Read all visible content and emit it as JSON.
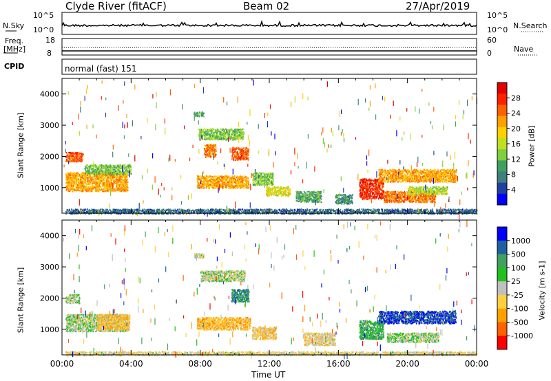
{
  "header": {
    "title": "Clyde River (fitACF)",
    "beam": "Beam 02",
    "date": "27/Apr/2019"
  },
  "top_panels": {
    "nsky_label": "N.Sky",
    "nsearch_label": "N.Search",
    "nsky_ticks": [
      "10^5",
      "10^0"
    ],
    "freq_label": "Freq.",
    "freq_unit": "[MHz]",
    "freq_ticks": [
      "18",
      "8"
    ],
    "nave_label": "Nave",
    "nave_ticks": [
      "60",
      "0"
    ],
    "cpid_label": "CPID",
    "cpid_text": "normal (fast) 151"
  },
  "chart_data": [
    {
      "type": "heatmap",
      "name": "power-panel",
      "ylabel": "Slant Range [km]",
      "yticks": [
        "4000",
        "3000",
        "2000",
        "1000"
      ],
      "ylim": [
        180,
        4500
      ],
      "xlim": [
        0,
        24
      ],
      "colorbar_label": "Power [dB]",
      "colorbar_ticks": [
        "28",
        "24",
        "20",
        "16",
        "12",
        "8",
        "4"
      ],
      "colorbar_range": [
        0,
        30
      ],
      "colorscale": [
        "#0000ff",
        "#2040a0",
        "#3f7f7f",
        "#3fa060",
        "#7fcf3f",
        "#bfdf20",
        "#ffd000",
        "#ffa000",
        "#ff6000",
        "#ff2000",
        "#e00000"
      ],
      "blobs": [
        {
          "t0": 0.2,
          "t1": 1.2,
          "r0": 1850,
          "r1": 2150,
          "v": 24
        },
        {
          "t0": 0.2,
          "t1": 3.8,
          "r0": 900,
          "r1": 1500,
          "v": 20
        },
        {
          "t0": 1.3,
          "t1": 4.0,
          "r0": 1450,
          "r1": 1750,
          "v": 12
        },
        {
          "t0": 7.6,
          "t1": 8.2,
          "r0": 3300,
          "r1": 3450,
          "v": 10
        },
        {
          "t0": 7.9,
          "t1": 10.5,
          "r0": 2550,
          "r1": 2900,
          "v": 12
        },
        {
          "t0": 8.2,
          "t1": 8.9,
          "r0": 2000,
          "r1": 2400,
          "v": 22
        },
        {
          "t0": 9.8,
          "t1": 10.8,
          "r0": 1900,
          "r1": 2300,
          "v": 24
        },
        {
          "t0": 7.8,
          "t1": 10.8,
          "r0": 1000,
          "r1": 1400,
          "v": 20
        },
        {
          "t0": 11.0,
          "t1": 12.2,
          "r0": 1100,
          "r1": 1500,
          "v": 12
        },
        {
          "t0": 11.8,
          "t1": 13.2,
          "r0": 750,
          "r1": 1050,
          "v": 16
        },
        {
          "t0": 13.5,
          "t1": 15.0,
          "r0": 550,
          "r1": 900,
          "v": 10
        },
        {
          "t0": 15.8,
          "t1": 16.8,
          "r0": 500,
          "r1": 800,
          "v": 8
        },
        {
          "t0": 17.2,
          "t1": 18.6,
          "r0": 650,
          "r1": 1300,
          "v": 26
        },
        {
          "t0": 18.3,
          "t1": 22.8,
          "r0": 1200,
          "r1": 1600,
          "v": 20
        },
        {
          "t0": 18.6,
          "t1": 21.6,
          "r0": 550,
          "r1": 900,
          "v": 22
        },
        {
          "t0": 20.0,
          "t1": 22.3,
          "r0": 800,
          "r1": 1050,
          "v": 14
        },
        {
          "t0": 0.2,
          "t1": 24.0,
          "r0": 180,
          "r1": 330,
          "v": 6
        }
      ]
    },
    {
      "type": "heatmap",
      "name": "velocity-panel",
      "ylabel": "Slant Range [km]",
      "yticks": [
        "4000",
        "3000",
        "2000",
        "1000"
      ],
      "ylim": [
        180,
        4500
      ],
      "xlim": [
        0,
        24
      ],
      "xticks": [
        "00:00",
        "04:00",
        "08:00",
        "12:00",
        "16:00",
        "20:00",
        "00:00"
      ],
      "xlabel": "Time UT",
      "colorbar_label": "Velocity [m s-1]",
      "colorbar_ticks": [
        "1000",
        "500",
        "100",
        "25",
        "-25",
        "-100",
        "-500",
        "-1000"
      ],
      "colorbar_range": [
        -1200,
        1200
      ],
      "colorscale": [
        "#ff0000",
        "#ff6000",
        "#ffa000",
        "#ffd040",
        "#c0c0c0",
        "#20c020",
        "#40a060",
        "#2060a0",
        "#0000ff"
      ],
      "blobs": [
        {
          "t0": 0.2,
          "t1": 1.0,
          "r0": 1850,
          "r1": 2150,
          "v": 0
        },
        {
          "t0": 0.2,
          "t1": 3.8,
          "r0": 950,
          "r1": 1500,
          "v": 50
        },
        {
          "t0": 2.0,
          "t1": 3.9,
          "r0": 1000,
          "r1": 1500,
          "v": -300
        },
        {
          "t0": 7.6,
          "t1": 8.2,
          "r0": 3300,
          "r1": 3450,
          "v": 0
        },
        {
          "t0": 8.0,
          "t1": 10.6,
          "r0": 2550,
          "r1": 2900,
          "v": 0
        },
        {
          "t0": 9.8,
          "t1": 10.8,
          "r0": 1900,
          "r1": 2300,
          "v": 600
        },
        {
          "t0": 7.8,
          "t1": 10.9,
          "r0": 1000,
          "r1": 1400,
          "v": -400
        },
        {
          "t0": 11.0,
          "t1": 12.4,
          "r0": 700,
          "r1": 1100,
          "v": -250
        },
        {
          "t0": 14.0,
          "t1": 15.8,
          "r0": 500,
          "r1": 900,
          "v": -150
        },
        {
          "t0": 17.2,
          "t1": 18.6,
          "r0": 700,
          "r1": 1300,
          "v": 400
        },
        {
          "t0": 18.3,
          "t1": 22.8,
          "r0": 1200,
          "r1": 1600,
          "v": 900
        },
        {
          "t0": 18.8,
          "t1": 21.8,
          "r0": 600,
          "r1": 900,
          "v": 80
        },
        {
          "t0": 0.2,
          "t1": 24.0,
          "r0": 180,
          "r1": 300,
          "v": -120
        }
      ]
    }
  ]
}
